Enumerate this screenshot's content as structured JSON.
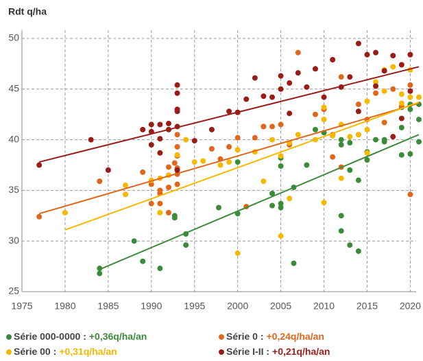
{
  "chart_data": {
    "type": "scatter",
    "title": "Rdt q/ha",
    "xlim": [
      1975,
      2021
    ],
    "ylim": [
      25,
      50
    ],
    "xticks": [
      1975,
      1980,
      1985,
      1990,
      1995,
      2000,
      2005,
      2010,
      2015,
      2020
    ],
    "yticks": [
      25,
      30,
      35,
      40,
      45,
      50
    ],
    "grid": true,
    "series": [
      {
        "name": "Série 000-0000 :",
        "trend_label": "+0,36q/ha/an",
        "color": "#3b8c3a",
        "x": [
          1984,
          1984,
          1988,
          1989,
          1991,
          1992.7,
          1992.7,
          1994,
          1994,
          1997.8,
          2000,
          2000,
          2004,
          2004,
          2005,
          2005,
          2005,
          2005,
          2006.5,
          2006.5,
          2008,
          2009,
          2010,
          2012,
          2012,
          2012,
          2012,
          2013,
          2013,
          2013,
          2014,
          2014,
          2015,
          2015,
          2016,
          2017,
          2017,
          2019,
          2019,
          2020,
          2020,
          2020,
          2021,
          2021,
          2021,
          2019
        ],
        "values": [
          27.3,
          26.8,
          30,
          28,
          27.3,
          32.3,
          32.5,
          30.7,
          29.6,
          33.3,
          32.7,
          37.8,
          33.5,
          34.7,
          33.7,
          33.3,
          37.4,
          38.2,
          35.3,
          27.8,
          37.5,
          41,
          40.7,
          32.5,
          31,
          39.5,
          40,
          37,
          29.6,
          39.7,
          36,
          29,
          38.8,
          38,
          40,
          39.8,
          40,
          38.5,
          41.2,
          38.6,
          43,
          43.5,
          42,
          39.8,
          43.5,
          43.2
        ],
        "trend": {
          "x": [
            1984,
            2021
          ],
          "values": [
            27.2,
            40.5
          ]
        }
      },
      {
        "name": "Série 0 :",
        "trend_label": "+0,24q/ha/an",
        "color": "#e0661c",
        "x": [
          1977,
          1984,
          1989,
          1990,
          1990,
          1991,
          1991,
          1991,
          1992,
          1992,
          1992,
          1992.7,
          1993,
          1993,
          1993,
          1993,
          1993,
          1993,
          1997,
          1998,
          1999,
          2000,
          2001,
          2002,
          2003,
          2003,
          2004,
          2005,
          2006,
          2007,
          2009,
          2010,
          2011,
          2011,
          2012,
          2012,
          2014,
          2014,
          2015,
          2016,
          2017,
          2018,
          2019,
          2020,
          2020
        ],
        "values": [
          32.4,
          35.9,
          36.8,
          33.7,
          35.6,
          34.7,
          35,
          33.7,
          32.8,
          35.3,
          37.3,
          37.7,
          39.3,
          40.5,
          38.4,
          37.2,
          36.6,
          35.6,
          39.1,
          38.1,
          39.3,
          40.2,
          33.4,
          40.2,
          41.3,
          41.3,
          41.3,
          41.5,
          39.5,
          48.6,
          42.5,
          43,
          38.3,
          40.5,
          37.3,
          46.2,
          43.5,
          40.5,
          42,
          44.6,
          41.7,
          45,
          43.3,
          45.4,
          34.6
        ],
        "trend": {
          "x": [
            1977,
            2021
          ],
          "values": [
            32.7,
            43.6
          ]
        }
      },
      {
        "name": "Série 00 :",
        "trend_label": "+0,31q/ha/an",
        "color": "#f6b900",
        "x": [
          1980,
          1987,
          1987,
          1990,
          1991,
          1991,
          1992,
          1993,
          1994,
          1995,
          1996,
          1998,
          1999,
          2000,
          2000,
          2002,
          2003,
          2004,
          2005,
          2005,
          2006,
          2006,
          2007,
          2009,
          2010,
          2010,
          2010,
          2011,
          2012,
          2012,
          2013,
          2014,
          2015,
          2015,
          2015,
          2016,
          2017,
          2017,
          2018,
          2018,
          2019,
          2019,
          2020,
          2020,
          2021
        ],
        "values": [
          32.8,
          35.5,
          34.6,
          36,
          32.8,
          36.2,
          36.5,
          38.5,
          40,
          37.8,
          37.9,
          37.5,
          37.8,
          28.8,
          39,
          38.8,
          35.9,
          40,
          30.5,
          38.4,
          34.2,
          39.7,
          40.5,
          40,
          33.8,
          42,
          43.2,
          40.4,
          36.2,
          41.5,
          40.3,
          40.5,
          41,
          38.7,
          43.8,
          45.7,
          44.8,
          46.9,
          48.3,
          47.2,
          44.5,
          43.6,
          44.2,
          46.9,
          44.2
        ],
        "trend": {
          "x": [
            1980,
            2021
          ],
          "values": [
            31.1,
            43.7
          ]
        }
      },
      {
        "name": "Série I-II :",
        "trend_label": "+0,21q/ha/an",
        "color": "#9a1c17",
        "x": [
          1977,
          1983,
          1985,
          1989,
          1990,
          1990,
          1990,
          1991,
          1991,
          1991,
          1992,
          1992,
          1993,
          1993,
          1993,
          1993,
          1993,
          1993,
          1995,
          1997,
          1999,
          2000,
          2001,
          2002,
          2003,
          2004,
          2005,
          2005,
          2006,
          2006,
          2007,
          2008,
          2009,
          2010,
          2011,
          2012,
          2013,
          2014,
          2014,
          2015,
          2016,
          2016,
          2017,
          2018,
          2018,
          2019,
          2019,
          2020,
          2020
        ],
        "values": [
          37.5,
          40,
          37,
          41,
          41.5,
          40.8,
          39.5,
          41.5,
          40.1,
          38.7,
          41.6,
          41,
          42.8,
          43,
          44.6,
          45.4,
          41.3,
          37,
          39.9,
          41,
          42.8,
          42.7,
          44,
          46.1,
          44.3,
          44.2,
          46.3,
          45,
          42.6,
          45.6,
          46.6,
          45.2,
          47,
          44.2,
          47.9,
          45.2,
          46.2,
          49.5,
          42.8,
          48.4,
          48.6,
          45.3,
          46.8,
          48.3,
          40.3,
          47.4,
          42.1,
          48.4,
          44.8
        ],
        "trend": {
          "x": [
            1977,
            2021
          ],
          "values": [
            37.8,
            47.2
          ]
        }
      }
    ]
  }
}
